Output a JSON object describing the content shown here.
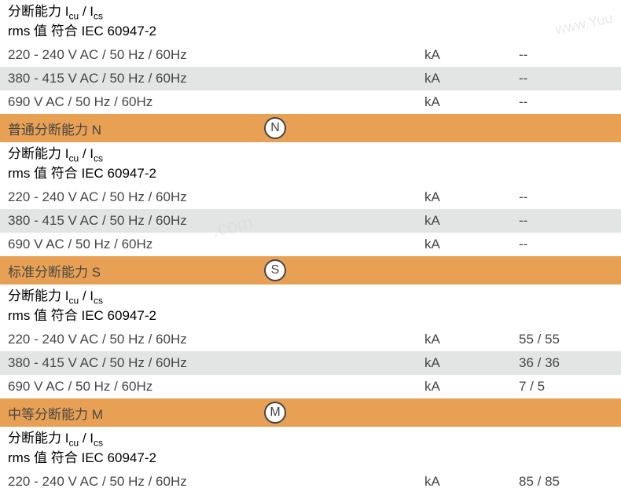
{
  "colors": {
    "row_gray": "#e3e4e4",
    "row_white": "#ffffff",
    "row_orange": "#e8a154",
    "text": "#464646",
    "badge_border": "#464646",
    "badge_bg": "#ffffff"
  },
  "top_header": {
    "line1_prefix": "分断能力 I",
    "line1_sub1": "cu",
    "line1_mid": " / I",
    "line1_sub2": "cs",
    "line2": "rms 值 符合 IEC 60947-2"
  },
  "rows_top": [
    {
      "desc": "220 - 240 V AC / 50 Hz / 60Hz",
      "unit": "kA",
      "value": "--",
      "bg": "white"
    },
    {
      "desc": "380 - 415 V AC / 50 Hz / 60Hz",
      "unit": "kA",
      "value": "--",
      "bg": "gray"
    },
    {
      "desc": "690 V AC / 50 Hz / 60Hz",
      "unit": "kA",
      "value": "--",
      "bg": "white"
    }
  ],
  "section_n": {
    "title": "普通分断能力 N",
    "badge": "N",
    "header": {
      "line1_prefix": "分断能力 I",
      "line1_sub1": "cu",
      "line1_mid": " / I",
      "line1_sub2": "cs",
      "line2": "rms 值 符合 IEC 60947-2"
    },
    "rows": [
      {
        "desc": "220 - 240 V AC / 50 Hz / 60Hz",
        "unit": "kA",
        "value": "--",
        "bg": "white"
      },
      {
        "desc": "380 - 415 V AC / 50 Hz / 60Hz",
        "unit": "kA",
        "value": "--",
        "bg": "gray"
      },
      {
        "desc": "690 V AC / 50 Hz / 60Hz",
        "unit": "kA",
        "value": "--",
        "bg": "white"
      }
    ]
  },
  "section_s": {
    "title": "标准分断能力 S",
    "badge": "S",
    "header": {
      "line1_prefix": "分断能力 I",
      "line1_sub1": "cu",
      "line1_mid": " / I",
      "line1_sub2": "cs",
      "line2": "rms 值 符合 IEC 60947-2"
    },
    "rows": [
      {
        "desc": "220 - 240 V AC / 50 Hz / 60Hz",
        "unit": "kA",
        "value": "55 / 55",
        "bg": "white"
      },
      {
        "desc": "380 - 415 V AC / 50 Hz / 60Hz",
        "unit": "kA",
        "value": "36 / 36",
        "bg": "gray"
      },
      {
        "desc": "690 V AC / 50 Hz / 60Hz",
        "unit": "kA",
        "value": "7 / 5",
        "bg": "white"
      }
    ]
  },
  "section_m": {
    "title": "中等分断能力 M",
    "badge": "M",
    "header": {
      "line1_prefix": "分断能力 I",
      "line1_sub1": "cu",
      "line1_mid": " / I",
      "line1_sub2": "cs",
      "line2": "rms 值 符合 IEC 60947-2"
    },
    "rows": [
      {
        "desc": "220 - 240 V AC / 50 Hz / 60Hz",
        "unit": "kA",
        "value": "85 / 85",
        "bg": "white"
      }
    ]
  },
  "watermark1": "www.Yuu",
  "watermark2": ".com"
}
